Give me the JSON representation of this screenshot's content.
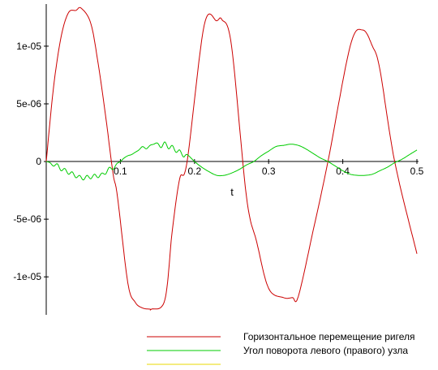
{
  "chart_data": {
    "type": "line",
    "xlabel": "t",
    "ylabel": "",
    "xlim": [
      0,
      0.5
    ],
    "ylim": [
      -1.28e-05,
      1.33e-05
    ],
    "x_ticks": [
      {
        "value": 0.1,
        "label": "0.1"
      },
      {
        "value": 0.2,
        "label": "0.2"
      },
      {
        "value": 0.3,
        "label": "0.3"
      },
      {
        "value": 0.4,
        "label": "0.4"
      },
      {
        "value": 0.5,
        "label": "0.5"
      }
    ],
    "y_ticks": [
      {
        "value": 1e-05,
        "label": "1e-05"
      },
      {
        "value": 5e-06,
        "label": "5e-06"
      },
      {
        "value": 0,
        "label": "0"
      },
      {
        "value": -5e-06,
        "label": "-5e-06"
      },
      {
        "value": -1e-05,
        "label": "-1e-05"
      }
    ],
    "grid": false,
    "legend_position": "bottom",
    "series": [
      {
        "name": "Горизонтальное перемещение ригеля",
        "color": "#cc0000",
        "x": [
          0,
          0.01,
          0.02,
          0.03,
          0.04,
          0.047,
          0.06,
          0.07,
          0.08,
          0.09,
          0.096,
          0.11,
          0.12,
          0.13,
          0.14,
          0.142,
          0.16,
          0.17,
          0.18,
          0.19,
          0.213,
          0.23,
          0.237,
          0.25,
          0.27,
          0.284,
          0.3,
          0.32,
          0.332,
          0.34,
          0.36,
          0.38,
          0.41,
          0.427,
          0.44,
          0.45,
          0.47,
          0.5
        ],
        "y": [
          0,
          6.5e-06,
          1.08e-05,
          1.29e-05,
          1.31e-05,
          1.33e-05,
          1.2e-05,
          8.5e-06,
          4e-06,
          -1e-06,
          -3e-06,
          -1.05e-05,
          -1.22e-05,
          -1.27e-05,
          -1.28e-05,
          -1.28e-05,
          -1.2e-05,
          -6e-06,
          -1.5e-06,
          0,
          1.18e-05,
          1.22e-05,
          1.23e-05,
          1e-05,
          -3e-06,
          -7e-06,
          -1.1e-05,
          -1.18e-05,
          -1.18e-05,
          -1.17e-05,
          -6e-06,
          0,
          1e-05,
          1.14e-05,
          1e-05,
          8e-06,
          0,
          -8e-06
        ]
      },
      {
        "name": "Угол поворота левого (правого) узла",
        "color": "#00cc00",
        "x": [
          0,
          0.005,
          0.01,
          0.015,
          0.02,
          0.025,
          0.03,
          0.035,
          0.04,
          0.045,
          0.05,
          0.055,
          0.06,
          0.065,
          0.07,
          0.075,
          0.08,
          0.085,
          0.09,
          0.095,
          0.1,
          0.105,
          0.11,
          0.115,
          0.12,
          0.125,
          0.13,
          0.135,
          0.14,
          0.145,
          0.15,
          0.155,
          0.16,
          0.165,
          0.17,
          0.175,
          0.18,
          0.185,
          0.19,
          0.2,
          0.21,
          0.22,
          0.23,
          0.24,
          0.25,
          0.26,
          0.27,
          0.28,
          0.29,
          0.3,
          0.31,
          0.32,
          0.33,
          0.34,
          0.35,
          0.36,
          0.37,
          0.38,
          0.39,
          0.4,
          0.41,
          0.42,
          0.43,
          0.44,
          0.45,
          0.46,
          0.47,
          0.48,
          0.49,
          0.5
        ],
        "y": [
          0,
          -1e-07,
          -4e-07,
          -2e-07,
          -8e-07,
          -6e-07,
          -1.1e-06,
          -9e-07,
          -1.4e-06,
          -1.2e-06,
          -1.6e-06,
          -1.2e-06,
          -1.5e-06,
          -1.1e-06,
          -1.4e-06,
          -1e-06,
          -1.1e-06,
          -5e-07,
          -7e-07,
          -2e-07,
          0,
          3e-07,
          5e-07,
          6e-07,
          8e-07,
          1e-06,
          1.3e-06,
          1.1e-06,
          1.4e-06,
          1.5e-06,
          1.6e-06,
          1.2e-06,
          1.7e-06,
          1.1e-06,
          1.4e-06,
          8e-07,
          1e-06,
          4e-07,
          6e-07,
          0,
          -5e-07,
          -9e-07,
          -1.2e-06,
          -1.2e-06,
          -1e-06,
          -7e-07,
          -3e-07,
          0,
          5e-07,
          9e-07,
          1.3e-06,
          1.4e-06,
          1.5e-06,
          1.4e-06,
          1.1e-06,
          7e-07,
          3e-07,
          0,
          -4e-07,
          -8e-07,
          -1.1e-06,
          -1.2e-06,
          -1.2e-06,
          -1.1e-06,
          -8e-07,
          -5e-07,
          -1e-07,
          2e-07,
          6e-07,
          1e-06
        ]
      },
      {
        "name": "",
        "color": "#e8d800",
        "x": [],
        "y": []
      }
    ]
  }
}
